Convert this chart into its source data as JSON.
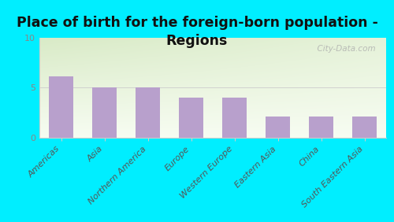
{
  "title": "Place of birth for the foreign-born population -\nRegions",
  "categories": [
    "Americas",
    "Asia",
    "Northern America",
    "Europe",
    "Western Europe",
    "Eastern Asia",
    "China",
    "South Eastern Asia"
  ],
  "values": [
    6.1,
    5.0,
    5.0,
    4.0,
    4.0,
    2.1,
    2.1,
    2.1
  ],
  "bar_color": "#b8a0cc",
  "background_color": "#00EEFF",
  "plot_bg_top_left": "#ddeebb",
  "plot_bg_top_right": "#e8f0d0",
  "plot_bg_bottom": "#f8faf0",
  "ylim": [
    0,
    10
  ],
  "yticks": [
    0,
    5,
    10
  ],
  "title_fontsize": 12.5,
  "tick_fontsize": 8,
  "ylabel_color": "#888888",
  "xlabel_color": "#555555",
  "watermark": "  City-Data.com",
  "spine_color": "#cccccc"
}
